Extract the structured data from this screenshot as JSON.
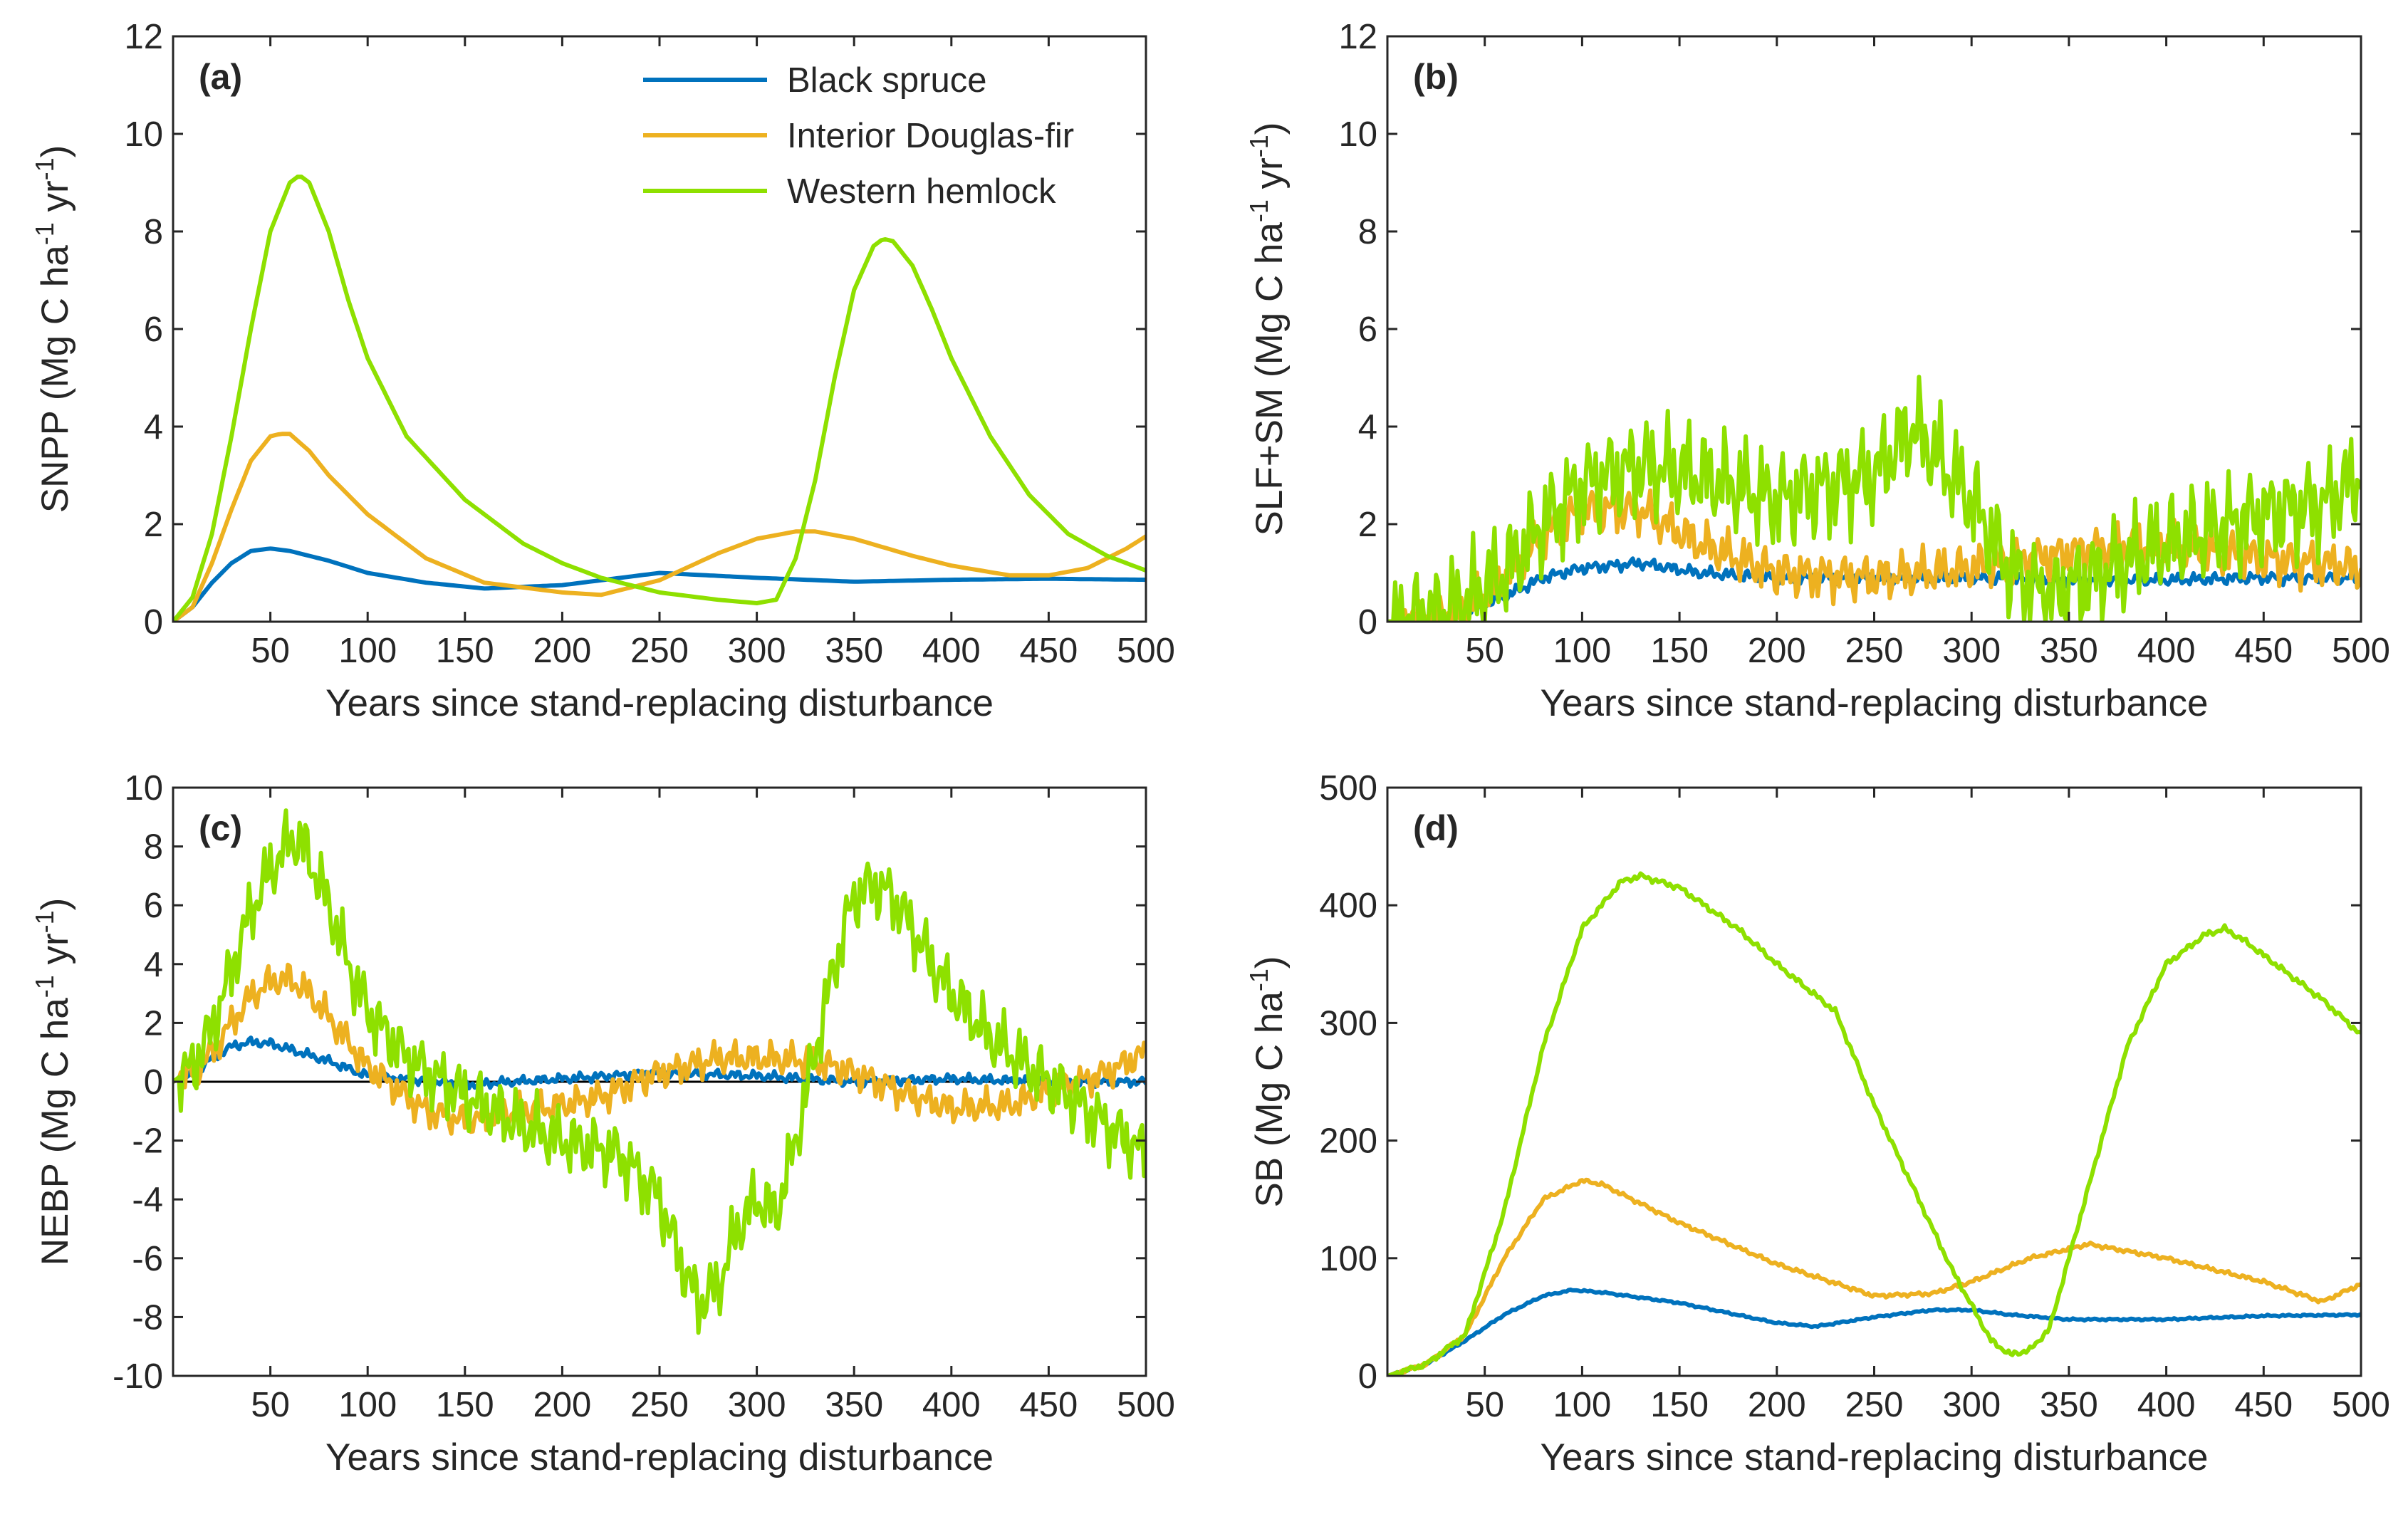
{
  "colors": {
    "black_spruce": "#0072BD",
    "interior_douglas_fir": "#EDB120",
    "western_hemlock": "#8EE000",
    "axes": "#262626",
    "zero_line": "#000000"
  },
  "chart_data": [
    {
      "id": "a",
      "type": "line",
      "panel_label": "(a)",
      "xlabel": "Years since stand-replacing disturbance",
      "ylabel_main": "SNPP (Mg C ha",
      "ylabel_exp1": "-1",
      "ylabel_mid": " yr",
      "ylabel_exp2": "-1",
      "ylabel_end": ")",
      "xlim": [
        0,
        500
      ],
      "ylim": [
        0,
        12
      ],
      "xticks": [
        50,
        100,
        150,
        200,
        250,
        300,
        350,
        400,
        450,
        500
      ],
      "yticks": [
        0,
        2,
        4,
        6,
        8,
        10,
        12
      ],
      "legend": {
        "placement": "top-center",
        "entries": [
          "Black spruce",
          "Interior Douglas-fir",
          "Western hemlock"
        ]
      },
      "series": [
        {
          "name": "Black spruce",
          "color_key": "black_spruce",
          "noise": 0,
          "x": [
            0,
            10,
            20,
            30,
            40,
            50,
            60,
            80,
            100,
            130,
            160,
            200,
            250,
            300,
            350,
            400,
            450,
            500
          ],
          "y": [
            0,
            0.3,
            0.8,
            1.2,
            1.45,
            1.5,
            1.45,
            1.25,
            1.0,
            0.8,
            0.68,
            0.75,
            1.0,
            0.9,
            0.82,
            0.86,
            0.88,
            0.86
          ]
        },
        {
          "name": "Interior Douglas-fir",
          "color_key": "interior_douglas_fir",
          "noise": 0,
          "x": [
            0,
            10,
            20,
            30,
            40,
            50,
            55,
            60,
            70,
            80,
            100,
            130,
            160,
            200,
            220,
            250,
            280,
            300,
            320,
            330,
            350,
            380,
            400,
            430,
            450,
            470,
            490,
            500
          ],
          "y": [
            0,
            0.3,
            1.2,
            2.3,
            3.3,
            3.8,
            3.85,
            3.85,
            3.5,
            3.0,
            2.2,
            1.3,
            0.8,
            0.6,
            0.55,
            0.85,
            1.4,
            1.7,
            1.85,
            1.85,
            1.7,
            1.35,
            1.15,
            0.95,
            0.95,
            1.1,
            1.5,
            1.75
          ]
        },
        {
          "name": "Western hemlock",
          "color_key": "western_hemlock",
          "noise": 0,
          "x": [
            0,
            10,
            20,
            30,
            40,
            50,
            60,
            65,
            70,
            80,
            90,
            100,
            120,
            150,
            180,
            200,
            220,
            250,
            280,
            300,
            310,
            320,
            330,
            340,
            350,
            360,
            365,
            370,
            380,
            390,
            400,
            420,
            440,
            460,
            480,
            500
          ],
          "y": [
            0,
            0.5,
            1.8,
            3.8,
            6.0,
            8.0,
            9.0,
            9.15,
            9.0,
            8.0,
            6.6,
            5.4,
            3.8,
            2.5,
            1.6,
            1.2,
            0.9,
            0.6,
            0.45,
            0.38,
            0.45,
            1.3,
            2.9,
            5.0,
            6.8,
            7.7,
            7.85,
            7.8,
            7.3,
            6.4,
            5.4,
            3.8,
            2.6,
            1.8,
            1.35,
            1.05
          ]
        }
      ]
    },
    {
      "id": "b",
      "type": "line",
      "panel_label": "(b)",
      "xlabel": "Years since stand-replacing disturbance",
      "ylabel_main": "SLF+SM (Mg C ha",
      "ylabel_exp1": "-1",
      "ylabel_mid": " yr",
      "ylabel_exp2": "-1",
      "ylabel_end": ")",
      "xlim": [
        0,
        500
      ],
      "ylim": [
        0,
        12
      ],
      "xticks": [
        50,
        100,
        150,
        200,
        250,
        300,
        350,
        400,
        450,
        500
      ],
      "yticks": [
        0,
        2,
        4,
        6,
        8,
        10,
        12
      ],
      "series": [
        {
          "name": "Black spruce",
          "color_key": "black_spruce",
          "noise": 0.15,
          "x": [
            0,
            20,
            40,
            60,
            80,
            100,
            130,
            160,
            200,
            250,
            300,
            350,
            400,
            450,
            500
          ],
          "y": [
            0,
            0.05,
            0.2,
            0.5,
            0.9,
            1.1,
            1.2,
            1.0,
            0.9,
            0.9,
            0.9,
            0.85,
            0.85,
            0.9,
            0.9
          ]
        },
        {
          "name": "Interior Douglas-fir",
          "color_key": "interior_douglas_fir",
          "noise": 0.6,
          "x": [
            0,
            20,
            40,
            60,
            80,
            100,
            130,
            160,
            200,
            250,
            300,
            350,
            400,
            450,
            500
          ],
          "y": [
            0,
            0.05,
            0.3,
            0.9,
            1.8,
            2.3,
            2.3,
            1.6,
            1.0,
            0.9,
            1.1,
            1.4,
            1.6,
            1.3,
            1.1
          ]
        },
        {
          "name": "Western hemlock",
          "color_key": "western_hemlock",
          "noise": 1.3,
          "x": [
            0,
            20,
            40,
            60,
            80,
            100,
            130,
            160,
            200,
            250,
            270,
            300,
            320,
            340,
            400,
            450,
            480,
            500
          ],
          "y": [
            0,
            0.05,
            0.4,
            1.0,
            2.0,
            2.8,
            3.2,
            3.0,
            2.5,
            3.0,
            4.0,
            2.5,
            1.0,
            0.5,
            1.6,
            2.2,
            2.4,
            3.0
          ]
        }
      ]
    },
    {
      "id": "c",
      "type": "line",
      "panel_label": "(c)",
      "xlabel": "Years since stand-replacing disturbance",
      "ylabel_main": "NEBP (Mg C ha",
      "ylabel_exp1": "-1",
      "ylabel_mid": " yr",
      "ylabel_exp2": "-1",
      "ylabel_end": ")",
      "xlim": [
        0,
        500
      ],
      "ylim": [
        -10,
        10
      ],
      "xticks": [
        50,
        100,
        150,
        200,
        250,
        300,
        350,
        400,
        450,
        500
      ],
      "yticks": [
        -10,
        -8,
        -6,
        -4,
        -2,
        0,
        2,
        4,
        6,
        8,
        10
      ],
      "zero_line": true,
      "series": [
        {
          "name": "Black spruce",
          "color_key": "black_spruce",
          "noise": 0.2,
          "x": [
            0,
            10,
            20,
            30,
            40,
            50,
            60,
            80,
            100,
            150,
            200,
            250,
            300,
            350,
            400,
            450,
            500
          ],
          "y": [
            0,
            0.3,
            0.8,
            1.2,
            1.35,
            1.3,
            1.1,
            0.7,
            0.2,
            -0.1,
            0.1,
            0.3,
            0.2,
            0.0,
            0.1,
            0.0,
            0.0
          ]
        },
        {
          "name": "Interior Douglas-fir",
          "color_key": "interior_douglas_fir",
          "noise": 0.7,
          "x": [
            0,
            10,
            20,
            30,
            40,
            50,
            60,
            70,
            80,
            100,
            130,
            150,
            200,
            220,
            250,
            280,
            300,
            330,
            350,
            380,
            400,
            430,
            450,
            480,
            500
          ],
          "y": [
            0,
            0.3,
            1.0,
            2.0,
            2.9,
            3.4,
            3.5,
            3.0,
            2.2,
            0.5,
            -1.0,
            -1.3,
            -0.8,
            -0.5,
            0.3,
            0.8,
            0.8,
            0.7,
            0.3,
            -0.5,
            -0.9,
            -0.8,
            -0.3,
            0.3,
            1.0
          ]
        },
        {
          "name": "Western hemlock",
          "color_key": "western_hemlock",
          "noise": 1.4,
          "x": [
            0,
            10,
            20,
            30,
            40,
            50,
            60,
            65,
            70,
            80,
            90,
            100,
            120,
            150,
            180,
            200,
            230,
            250,
            260,
            270,
            280,
            290,
            300,
            310,
            320,
            330,
            340,
            350,
            360,
            370,
            380,
            390,
            400,
            420,
            440,
            460,
            480,
            500
          ],
          "y": [
            0,
            0.5,
            1.8,
            3.8,
            5.8,
            7.2,
            8.2,
            8.2,
            7.6,
            6.0,
            4.0,
            2.4,
            0.8,
            -0.5,
            -1.5,
            -2.0,
            -2.5,
            -4.0,
            -6.0,
            -7.5,
            -7.0,
            -5.0,
            -4.0,
            -4.5,
            -2.0,
            1.0,
            4.0,
            6.3,
            6.7,
            6.3,
            5.2,
            4.0,
            3.0,
            1.5,
            0.5,
            -0.5,
            -1.5,
            -2.5
          ]
        }
      ]
    },
    {
      "id": "d",
      "type": "line",
      "panel_label": "(d)",
      "xlabel": "Years since stand-replacing disturbance",
      "ylabel_main": "SB (Mg C ha",
      "ylabel_exp1": "-1",
      "ylabel_mid": "",
      "ylabel_exp2": "",
      "ylabel_end": ")",
      "xlim": [
        0,
        500
      ],
      "ylim": [
        0,
        500
      ],
      "xticks": [
        50,
        100,
        150,
        200,
        250,
        300,
        350,
        400,
        450,
        500
      ],
      "yticks": [
        0,
        100,
        200,
        300,
        400,
        500
      ],
      "series": [
        {
          "name": "Black spruce",
          "color_key": "black_spruce",
          "noise": 1,
          "x": [
            0,
            20,
            40,
            60,
            80,
            95,
            110,
            150,
            200,
            220,
            250,
            280,
            300,
            320,
            350,
            400,
            450,
            500
          ],
          "y": [
            0,
            10,
            30,
            52,
            68,
            73,
            71,
            62,
            45,
            42,
            50,
            56,
            56,
            52,
            48,
            48,
            51,
            52
          ]
        },
        {
          "name": "Interior Douglas-fir",
          "color_key": "interior_douglas_fir",
          "noise": 2,
          "x": [
            0,
            20,
            40,
            60,
            80,
            100,
            110,
            150,
            200,
            250,
            280,
            300,
            330,
            360,
            400,
            450,
            480,
            500
          ],
          "y": [
            0,
            10,
            35,
            100,
            150,
            166,
            163,
            130,
            95,
            68,
            70,
            80,
            100,
            112,
            100,
            80,
            63,
            78
          ]
        },
        {
          "name": "Western hemlock",
          "color_key": "western_hemlock",
          "noise": 3,
          "x": [
            0,
            20,
            40,
            60,
            80,
            100,
            120,
            130,
            150,
            180,
            200,
            230,
            250,
            270,
            290,
            310,
            320,
            330,
            340,
            360,
            380,
            400,
            420,
            430,
            440,
            460,
            480,
            500
          ],
          "y": [
            0,
            10,
            35,
            140,
            280,
            380,
            420,
            425,
            415,
            380,
            350,
            310,
            230,
            160,
            90,
            30,
            18,
            22,
            40,
            160,
            280,
            350,
            375,
            380,
            370,
            345,
            320,
            290
          ]
        }
      ]
    }
  ]
}
